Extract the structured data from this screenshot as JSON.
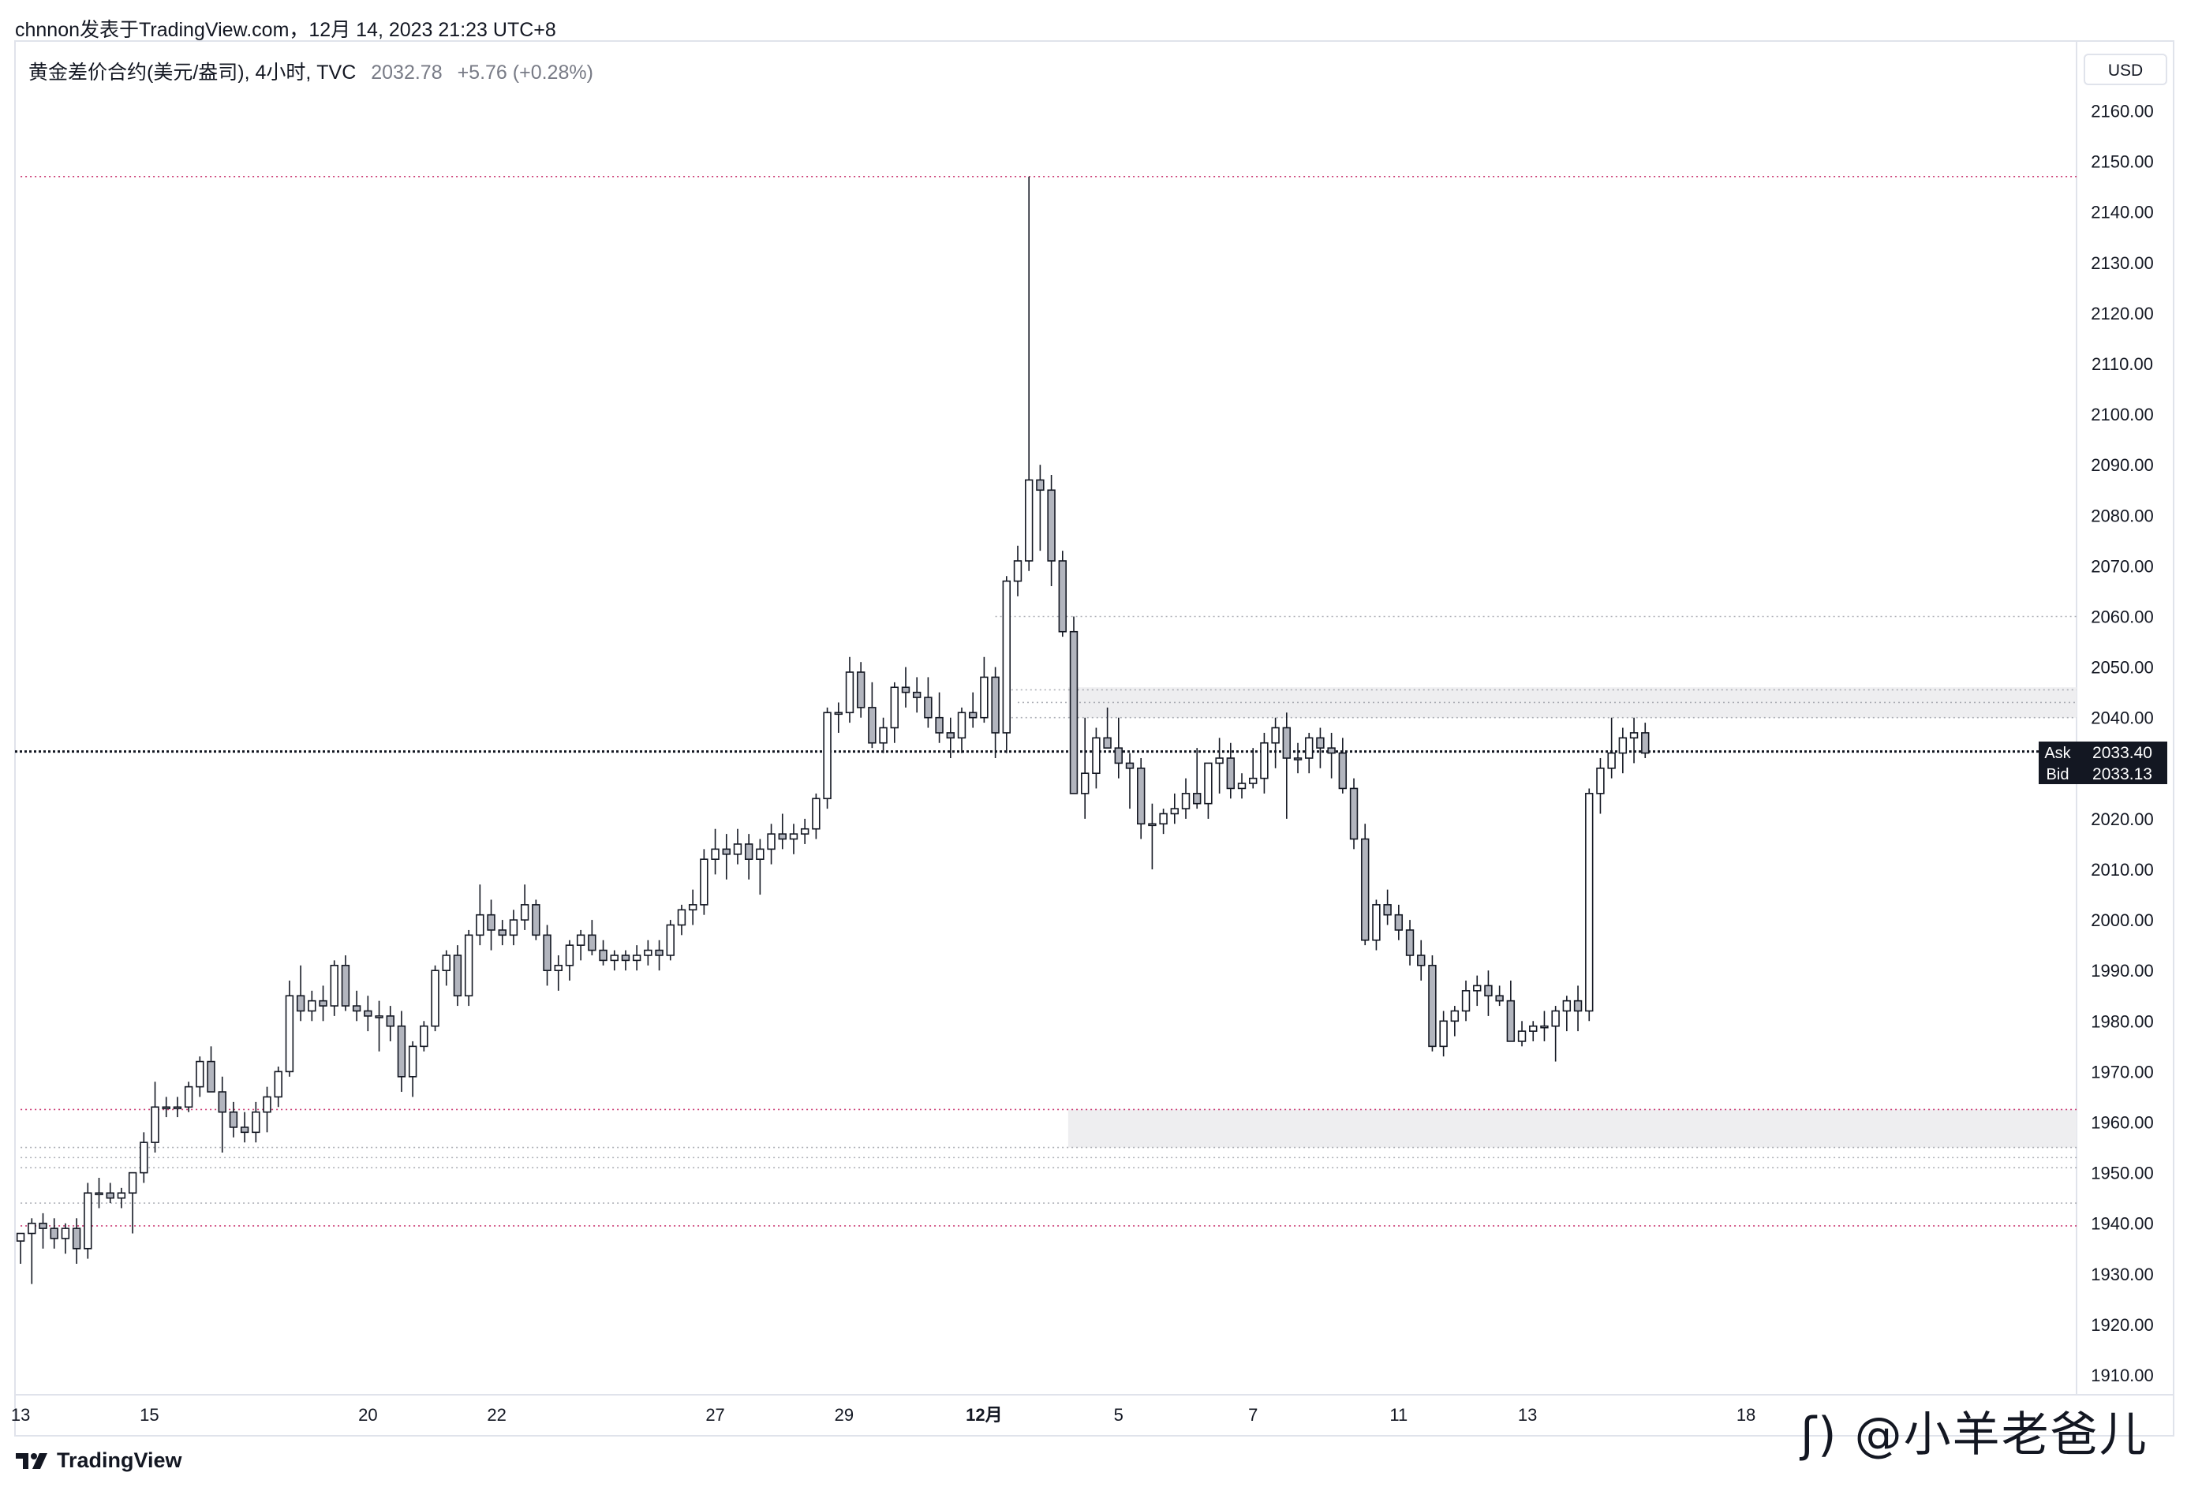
{
  "header": {
    "attribution": "chnnon发表于TradingView.com，12月 14, 2023 21:23 UTC+8"
  },
  "legend": {
    "symbol": "黄金差价合约(美元/盎司), 4小时, TVC",
    "price": "2032.78",
    "change": "+5.76 (+0.28%)"
  },
  "price_axis": {
    "currency": "USD"
  },
  "quotes": {
    "ask_label": "Ask",
    "ask_value": "2033.40",
    "bid_label": "Bid",
    "bid_value": "2033.13"
  },
  "footer": {
    "brand": "TradingView"
  },
  "watermark": {
    "text": "@小羊老爸儿"
  },
  "colors": {
    "up_body": "#ffffff",
    "down_body": "#b2b5be",
    "wick": "#131722",
    "red_level": "#c2185b",
    "gray_level": "#9598a1",
    "zone": "#eeeef0",
    "grid": "#f0f3fa"
  },
  "chart_data": {
    "type": "candlestick",
    "interval": "4h",
    "ylim": [
      1905,
      2170
    ],
    "y_ticks": [
      1910,
      1920,
      1930,
      1940,
      1950,
      1960,
      1970,
      1980,
      1990,
      2000,
      2010,
      2020,
      2030,
      2040,
      2050,
      2060,
      2070,
      2080,
      2090,
      2100,
      2110,
      2120,
      2130,
      2140,
      2150,
      2160
    ],
    "x_ticks": [
      {
        "label": "13",
        "index": 0
      },
      {
        "label": "15",
        "index": 11.5
      },
      {
        "label": "20",
        "index": 31
      },
      {
        "label": "22",
        "index": 42.5
      },
      {
        "label": "27",
        "index": 62
      },
      {
        "label": "29",
        "index": 73.5
      },
      {
        "label": "12月",
        "index": 86
      },
      {
        "label": "5",
        "index": 98
      },
      {
        "label": "7",
        "index": 110
      },
      {
        "label": "11",
        "index": 123
      },
      {
        "label": "13",
        "index": 134.5
      },
      {
        "label": "18",
        "index": 154
      }
    ],
    "x_range": [
      -0.5,
      183.5
    ],
    "candles": [
      [
        1936.5,
        1938,
        1932,
        1938
      ],
      [
        1938,
        1941,
        1928,
        1940
      ],
      [
        1940,
        1942,
        1935,
        1939
      ],
      [
        1939,
        1941,
        1935,
        1937
      ],
      [
        1937,
        1940,
        1934,
        1939
      ],
      [
        1939,
        1941,
        1932,
        1935
      ],
      [
        1935,
        1948,
        1933,
        1946
      ],
      [
        1946,
        1949,
        1943,
        1946
      ],
      [
        1946,
        1948,
        1944,
        1945
      ],
      [
        1945,
        1947,
        1943,
        1946
      ],
      [
        1946,
        1950,
        1938,
        1950
      ],
      [
        1950,
        1958,
        1948,
        1956
      ],
      [
        1956,
        1968,
        1954,
        1963
      ],
      [
        1963,
        1965,
        1961,
        1963
      ],
      [
        1963,
        1965,
        1961,
        1963
      ],
      [
        1963,
        1968,
        1962,
        1967
      ],
      [
        1967,
        1973,
        1965,
        1972
      ],
      [
        1972,
        1975,
        1966,
        1966
      ],
      [
        1966,
        1969,
        1954,
        1962
      ],
      [
        1962,
        1964,
        1957,
        1959
      ],
      [
        1959,
        1962,
        1956,
        1958
      ],
      [
        1958,
        1964,
        1956,
        1962
      ],
      [
        1962,
        1967,
        1958,
        1965
      ],
      [
        1965,
        1971,
        1963,
        1970
      ],
      [
        1970,
        1988,
        1969,
        1985
      ],
      [
        1985,
        1991,
        1980,
        1982
      ],
      [
        1982,
        1986,
        1980,
        1984
      ],
      [
        1984,
        1987,
        1980,
        1983
      ],
      [
        1983,
        1992,
        1981,
        1991
      ],
      [
        1991,
        1993,
        1982,
        1983
      ],
      [
        1983,
        1986,
        1980,
        1982
      ],
      [
        1982,
        1985,
        1978,
        1981
      ],
      [
        1981,
        1984,
        1974,
        1981
      ],
      [
        1981,
        1983,
        1976,
        1979
      ],
      [
        1979,
        1982,
        1966,
        1969
      ],
      [
        1969,
        1976,
        1965,
        1975
      ],
      [
        1975,
        1980,
        1974,
        1979
      ],
      [
        1979,
        1991,
        1978,
        1990
      ],
      [
        1990,
        1994,
        1987,
        1993
      ],
      [
        1993,
        1995,
        1983,
        1985
      ],
      [
        1985,
        1998,
        1983,
        1997
      ],
      [
        1997,
        2007,
        1995,
        2001
      ],
      [
        2001,
        2004,
        1994,
        1998
      ],
      [
        1998,
        2000,
        1995,
        1997
      ],
      [
        1997,
        2002,
        1995,
        2000
      ],
      [
        2000,
        2007,
        1998,
        2003
      ],
      [
        2003,
        2004,
        1996,
        1997
      ],
      [
        1997,
        1999,
        1987,
        1990
      ],
      [
        1990,
        1993,
        1986,
        1991
      ],
      [
        1991,
        1996,
        1988,
        1995
      ],
      [
        1995,
        1998,
        1992,
        1997
      ],
      [
        1997,
        2000,
        1993,
        1994
      ],
      [
        1994,
        1996,
        1991,
        1992
      ],
      [
        1992,
        1994,
        1990,
        1993
      ],
      [
        1993,
        1994,
        1990,
        1992
      ],
      [
        1992,
        1995,
        1990,
        1993
      ],
      [
        1993,
        1996,
        1991,
        1994
      ],
      [
        1994,
        1996,
        1990,
        1993
      ],
      [
        1993,
        2000,
        1992,
        1999
      ],
      [
        1999,
        2003,
        1997,
        2002
      ],
      [
        2002,
        2006,
        1999,
        2003
      ],
      [
        2003,
        2014,
        2001,
        2012
      ],
      [
        2012,
        2018,
        2009,
        2014
      ],
      [
        2014,
        2017,
        2008,
        2013
      ],
      [
        2013,
        2018,
        2011,
        2015
      ],
      [
        2015,
        2017,
        2008,
        2012
      ],
      [
        2012,
        2016,
        2005,
        2014
      ],
      [
        2014,
        2019,
        2011,
        2017
      ],
      [
        2017,
        2021,
        2014,
        2016
      ],
      [
        2016,
        2019,
        2013,
        2017
      ],
      [
        2017,
        2020,
        2015,
        2018
      ],
      [
        2018,
        2025,
        2016,
        2024
      ],
      [
        2024,
        2042,
        2022,
        2041
      ],
      [
        2041,
        2043,
        2037,
        2041
      ],
      [
        2041,
        2052,
        2039,
        2049
      ],
      [
        2049,
        2051,
        2040,
        2042
      ],
      [
        2042,
        2047,
        2034,
        2035
      ],
      [
        2035,
        2040,
        2033,
        2038
      ],
      [
        2038,
        2047,
        2035,
        2046
      ],
      [
        2046,
        2050,
        2042,
        2045
      ],
      [
        2045,
        2048,
        2041,
        2044
      ],
      [
        2044,
        2048,
        2038,
        2040
      ],
      [
        2040,
        2045,
        2035,
        2037
      ],
      [
        2037,
        2040,
        2032,
        2036
      ],
      [
        2036,
        2042,
        2033,
        2041
      ],
      [
        2041,
        2045,
        2038,
        2040
      ],
      [
        2040,
        2052,
        2039,
        2048
      ],
      [
        2048,
        2050,
        2032,
        2037
      ],
      [
        2037,
        2068,
        2033,
        2067
      ],
      [
        2067,
        2074,
        2064,
        2071
      ],
      [
        2071,
        2147,
        2069,
        2087
      ],
      [
        2087,
        2090,
        2073,
        2085
      ],
      [
        2085,
        2088,
        2066,
        2071
      ],
      [
        2071,
        2073,
        2056,
        2057
      ],
      [
        2057,
        2060,
        2025,
        2025
      ],
      [
        2025,
        2040,
        2020,
        2029
      ],
      [
        2029,
        2038,
        2026,
        2036
      ],
      [
        2036,
        2042,
        2034,
        2034
      ],
      [
        2034,
        2040,
        2028,
        2031
      ],
      [
        2031,
        2033,
        2022,
        2030
      ],
      [
        2030,
        2032,
        2016,
        2019
      ],
      [
        2019,
        2023,
        2010,
        2019
      ],
      [
        2019,
        2022,
        2017,
        2021
      ],
      [
        2021,
        2025,
        2019,
        2022
      ],
      [
        2022,
        2028,
        2020,
        2025
      ],
      [
        2025,
        2034,
        2022,
        2023
      ],
      [
        2023,
        2030,
        2020,
        2031
      ],
      [
        2031,
        2036,
        2025,
        2032
      ],
      [
        2032,
        2035,
        2024,
        2026
      ],
      [
        2026,
        2029,
        2024,
        2027
      ],
      [
        2027,
        2034,
        2026,
        2028
      ],
      [
        2028,
        2037,
        2025,
        2035
      ],
      [
        2035,
        2040,
        2030,
        2038
      ],
      [
        2038,
        2041,
        2020,
        2032
      ],
      [
        2032,
        2035,
        2029,
        2032
      ],
      [
        2032,
        2037,
        2029,
        2036
      ],
      [
        2036,
        2038,
        2030,
        2034
      ],
      [
        2034,
        2037,
        2028,
        2033
      ],
      [
        2033,
        2036,
        2025,
        2026
      ],
      [
        2026,
        2028,
        2014,
        2016
      ],
      [
        2016,
        2019,
        1995,
        1996
      ],
      [
        1996,
        2004,
        1994,
        2003
      ],
      [
        2003,
        2006,
        1999,
        2001
      ],
      [
        2001,
        2003,
        1996,
        1998
      ],
      [
        1998,
        2000,
        1991,
        1993
      ],
      [
        1993,
        1996,
        1988,
        1991
      ],
      [
        1991,
        1993,
        1974,
        1975
      ],
      [
        1975,
        1982,
        1973,
        1980
      ],
      [
        1980,
        1983,
        1977,
        1982
      ],
      [
        1982,
        1988,
        1980,
        1986
      ],
      [
        1986,
        1989,
        1983,
        1987
      ],
      [
        1987,
        1990,
        1981,
        1985
      ],
      [
        1985,
        1987,
        1983,
        1984
      ],
      [
        1984,
        1988,
        1976,
        1976
      ],
      [
        1976,
        1980,
        1975,
        1978
      ],
      [
        1978,
        1980,
        1976,
        1979
      ],
      [
        1979,
        1982,
        1976,
        1979
      ],
      [
        1979,
        1983,
        1972,
        1982
      ],
      [
        1982,
        1985,
        1978,
        1984
      ],
      [
        1984,
        1987,
        1978,
        1982
      ],
      [
        1982,
        2026,
        1980,
        2025
      ],
      [
        2025,
        2032,
        2021,
        2030
      ],
      [
        2030,
        2040,
        2028,
        2033
      ],
      [
        2033,
        2038,
        2029,
        2036
      ],
      [
        2036,
        2040,
        2031,
        2037
      ],
      [
        2037,
        2039,
        2032,
        2033
      ]
    ],
    "levels": [
      {
        "value": 2147,
        "style": "red",
        "from_index": 0
      },
      {
        "value": 2060,
        "style": "gray",
        "from_index": 87
      },
      {
        "value": 2045.5,
        "style": "gray",
        "from_index": 88
      },
      {
        "value": 2043,
        "style": "gray",
        "from_index": 89
      },
      {
        "value": 2040,
        "style": "gray",
        "from_index": 88
      },
      {
        "value": 1962.5,
        "style": "red",
        "from_index": 0
      },
      {
        "value": 1955,
        "style": "gray",
        "from_index": 0
      },
      {
        "value": 1953,
        "style": "gray",
        "from_index": 0
      },
      {
        "value": 1951,
        "style": "gray",
        "from_index": 0
      },
      {
        "value": 1944,
        "style": "gray",
        "from_index": 0
      },
      {
        "value": 1939.5,
        "style": "red",
        "from_index": 0
      }
    ],
    "zones": [
      {
        "from": 2040,
        "to": 2046,
        "from_index": 93.5
      },
      {
        "from": 1955,
        "to": 1962.5,
        "from_index": 93.5
      }
    ],
    "current_price_line": 2033.3
  }
}
